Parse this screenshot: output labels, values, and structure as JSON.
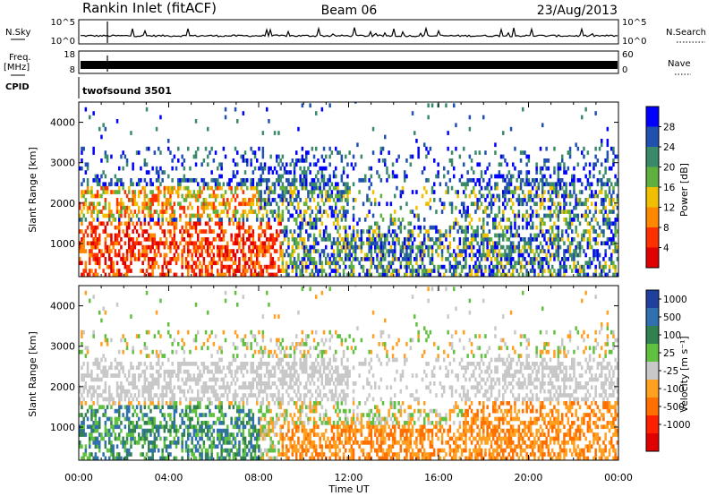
{
  "header": {
    "station": "Rankin Inlet (fitACF)",
    "beam": "Beam 06",
    "date": "23/Aug/2013"
  },
  "top_panels": {
    "nsky_label": "N.Sky",
    "nsearch_label": "N.Search",
    "nsky_ticks": [
      "10^5",
      "10^0"
    ],
    "nsearch_ticks": [
      "10^5",
      "10^0"
    ],
    "freq_label_1": "Freq.",
    "freq_label_2": "[MHz]",
    "freq_ticks": [
      "18",
      "8"
    ],
    "nave_label": "Nave",
    "nave_ticks": [
      "60",
      "0"
    ],
    "cpid_label": "CPID",
    "cpid_value": "twofsound 3501"
  },
  "colors": {
    "power": [
      "#0000ff",
      "#2050b0",
      "#3a8a6a",
      "#60b040",
      "#f0c000",
      "#ff8800",
      "#ff3000",
      "#e00000"
    ],
    "velocity": [
      "#2040a0",
      "#3070b0",
      "#308050",
      "#60c040",
      "#c8c8c8",
      "#ffa020",
      "#ff7000",
      "#ff2000",
      "#e00000"
    ]
  },
  "chart_data": [
    {
      "type": "heatmap",
      "name": "power",
      "ylabel": "Slant Range [km]",
      "xlabel": "Time UT",
      "x_ticks": [
        "00:00",
        "04:00",
        "08:00",
        "12:00",
        "16:00",
        "20:00",
        "00:00"
      ],
      "y_ticks": [
        "1000",
        "2000",
        "3000",
        "4000"
      ],
      "ylim": [
        180,
        4500
      ],
      "colorbar_label": "Power [dB]",
      "colorbar_ticks": [
        "4",
        "8",
        "12",
        "16",
        "20",
        "24",
        "28"
      ]
    },
    {
      "type": "heatmap",
      "name": "velocity",
      "ylabel": "Slant Range [km]",
      "xlabel": "Time UT",
      "x_ticks": [
        "00:00",
        "04:00",
        "08:00",
        "12:00",
        "16:00",
        "20:00",
        "00:00"
      ],
      "y_ticks": [
        "1000",
        "2000",
        "3000",
        "4000"
      ],
      "ylim": [
        180,
        4500
      ],
      "colorbar_label": "Velocity [m s⁻¹]",
      "colorbar_ticks": [
        "1000",
        "500",
        "100",
        "25",
        "-25",
        "-100",
        "-500",
        "-1000"
      ]
    }
  ]
}
